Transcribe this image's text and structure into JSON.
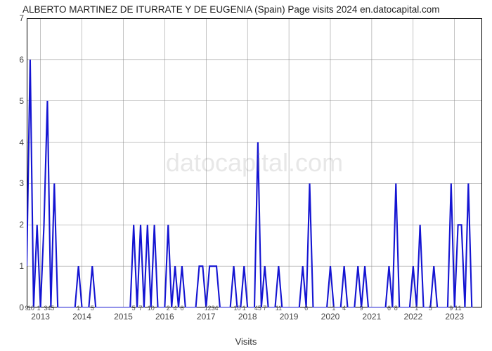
{
  "title": "ALBERTO MARTINEZ DE ITURRATE Y DE EUGENIA (Spain) Page visits 2024 en.datocapital.com",
  "xlabel": "Visits",
  "watermark": "datocapital.com",
  "chart": {
    "type": "line",
    "background_color": "#ffffff",
    "grid_color": "#888888",
    "grid_width": 0.5,
    "border_color": "#000000",
    "line_color": "#1414d2",
    "line_width": 2.1,
    "ylim": [
      0,
      7
    ],
    "yticks": [
      0,
      1,
      2,
      3,
      4,
      5,
      6,
      7
    ],
    "xlim": [
      0,
      132
    ],
    "label_fontsize": 12,
    "title_fontsize": 13,
    "year_ticks": [
      {
        "x": 4,
        "label": "2013"
      },
      {
        "x": 16,
        "label": "2014"
      },
      {
        "x": 28,
        "label": "2015"
      },
      {
        "x": 40,
        "label": "2016"
      },
      {
        "x": 52,
        "label": "2017"
      },
      {
        "x": 64,
        "label": "2018"
      },
      {
        "x": 76,
        "label": "2019"
      },
      {
        "x": 88,
        "label": "2020"
      },
      {
        "x": 100,
        "label": "2021"
      },
      {
        "x": 112,
        "label": "2022"
      },
      {
        "x": 124,
        "label": "2023"
      }
    ],
    "month_clusters": [
      {
        "x": 0,
        "label": "9"
      },
      {
        "x": 1.2,
        "label": "10"
      },
      {
        "x": 3.5,
        "label": "1"
      },
      {
        "x": 5.5,
        "label": "3"
      },
      {
        "x": 6.5,
        "label": "4"
      },
      {
        "x": 7.5,
        "label": "5"
      },
      {
        "x": 15,
        "label": "1"
      },
      {
        "x": 19,
        "label": "5"
      },
      {
        "x": 31,
        "label": "5"
      },
      {
        "x": 33,
        "label": "7"
      },
      {
        "x": 36,
        "label": "10"
      },
      {
        "x": 41,
        "label": "2"
      },
      {
        "x": 43,
        "label": "4"
      },
      {
        "x": 45,
        "label": "6"
      },
      {
        "x": 52,
        "label": "1"
      },
      {
        "x": 53,
        "label": "2"
      },
      {
        "x": 54,
        "label": "3"
      },
      {
        "x": 55,
        "label": "4"
      },
      {
        "x": 61,
        "label": "10"
      },
      {
        "x": 63,
        "label": "1"
      },
      {
        "x": 66.5,
        "label": "4"
      },
      {
        "x": 67.5,
        "label": "5"
      },
      {
        "x": 69,
        "label": "7"
      },
      {
        "x": 73,
        "label": "11"
      },
      {
        "x": 81,
        "label": "6"
      },
      {
        "x": 89,
        "label": "1"
      },
      {
        "x": 92,
        "label": "4"
      },
      {
        "x": 97,
        "label": "9"
      },
      {
        "x": 105,
        "label": "6"
      },
      {
        "x": 107,
        "label": "8"
      },
      {
        "x": 113,
        "label": "1"
      },
      {
        "x": 117,
        "label": "5"
      },
      {
        "x": 123,
        "label": "9"
      },
      {
        "x": 124.5,
        "label": "1"
      },
      {
        "x": 125.5,
        "label": "1"
      }
    ],
    "data": [
      {
        "x": 0,
        "y": 1
      },
      {
        "x": 1,
        "y": 6
      },
      {
        "x": 2,
        "y": 0
      },
      {
        "x": 3,
        "y": 2
      },
      {
        "x": 4,
        "y": 0
      },
      {
        "x": 5,
        "y": 2
      },
      {
        "x": 6,
        "y": 5
      },
      {
        "x": 7,
        "y": 0
      },
      {
        "x": 8,
        "y": 3
      },
      {
        "x": 9,
        "y": 0
      },
      {
        "x": 10,
        "y": 0
      },
      {
        "x": 14,
        "y": 0
      },
      {
        "x": 15,
        "y": 1
      },
      {
        "x": 16,
        "y": 0
      },
      {
        "x": 18,
        "y": 0
      },
      {
        "x": 19,
        "y": 1
      },
      {
        "x": 20,
        "y": 0
      },
      {
        "x": 29,
        "y": 0
      },
      {
        "x": 30,
        "y": 0
      },
      {
        "x": 31,
        "y": 2
      },
      {
        "x": 32,
        "y": 0
      },
      {
        "x": 33,
        "y": 2
      },
      {
        "x": 34,
        "y": 0
      },
      {
        "x": 35,
        "y": 2
      },
      {
        "x": 36,
        "y": 0
      },
      {
        "x": 37,
        "y": 2
      },
      {
        "x": 38,
        "y": 0
      },
      {
        "x": 40,
        "y": 0
      },
      {
        "x": 41,
        "y": 2
      },
      {
        "x": 42,
        "y": 0
      },
      {
        "x": 43,
        "y": 1
      },
      {
        "x": 44,
        "y": 0
      },
      {
        "x": 45,
        "y": 1
      },
      {
        "x": 46,
        "y": 0
      },
      {
        "x": 49,
        "y": 0
      },
      {
        "x": 50,
        "y": 1
      },
      {
        "x": 51,
        "y": 1
      },
      {
        "x": 52,
        "y": 0
      },
      {
        "x": 53,
        "y": 1
      },
      {
        "x": 54,
        "y": 1
      },
      {
        "x": 55,
        "y": 1
      },
      {
        "x": 56,
        "y": 0
      },
      {
        "x": 59,
        "y": 0
      },
      {
        "x": 60,
        "y": 1
      },
      {
        "x": 61,
        "y": 0
      },
      {
        "x": 62,
        "y": 0
      },
      {
        "x": 63,
        "y": 1
      },
      {
        "x": 64,
        "y": 0
      },
      {
        "x": 66,
        "y": 0
      },
      {
        "x": 67,
        "y": 4
      },
      {
        "x": 68,
        "y": 0
      },
      {
        "x": 69,
        "y": 1
      },
      {
        "x": 70,
        "y": 0
      },
      {
        "x": 72,
        "y": 0
      },
      {
        "x": 73,
        "y": 1
      },
      {
        "x": 74,
        "y": 0
      },
      {
        "x": 79,
        "y": 0
      },
      {
        "x": 80,
        "y": 1
      },
      {
        "x": 81,
        "y": 0
      },
      {
        "x": 82,
        "y": 3
      },
      {
        "x": 83,
        "y": 0
      },
      {
        "x": 87,
        "y": 0
      },
      {
        "x": 88,
        "y": 1
      },
      {
        "x": 89,
        "y": 0
      },
      {
        "x": 91,
        "y": 0
      },
      {
        "x": 92,
        "y": 1
      },
      {
        "x": 93,
        "y": 0
      },
      {
        "x": 95,
        "y": 0
      },
      {
        "x": 96,
        "y": 1
      },
      {
        "x": 97,
        "y": 0
      },
      {
        "x": 98,
        "y": 1
      },
      {
        "x": 99,
        "y": 0
      },
      {
        "x": 104,
        "y": 0
      },
      {
        "x": 105,
        "y": 1
      },
      {
        "x": 106,
        "y": 0
      },
      {
        "x": 107,
        "y": 3
      },
      {
        "x": 108,
        "y": 0
      },
      {
        "x": 111,
        "y": 0
      },
      {
        "x": 112,
        "y": 1
      },
      {
        "x": 113,
        "y": 0
      },
      {
        "x": 114,
        "y": 2
      },
      {
        "x": 115,
        "y": 0
      },
      {
        "x": 117,
        "y": 0
      },
      {
        "x": 118,
        "y": 1
      },
      {
        "x": 119,
        "y": 0
      },
      {
        "x": 122,
        "y": 0
      },
      {
        "x": 123,
        "y": 3
      },
      {
        "x": 124,
        "y": 0
      },
      {
        "x": 125,
        "y": 2
      },
      {
        "x": 126,
        "y": 2
      },
      {
        "x": 127,
        "y": 0
      },
      {
        "x": 128,
        "y": 3
      },
      {
        "x": 129,
        "y": 0
      }
    ]
  }
}
